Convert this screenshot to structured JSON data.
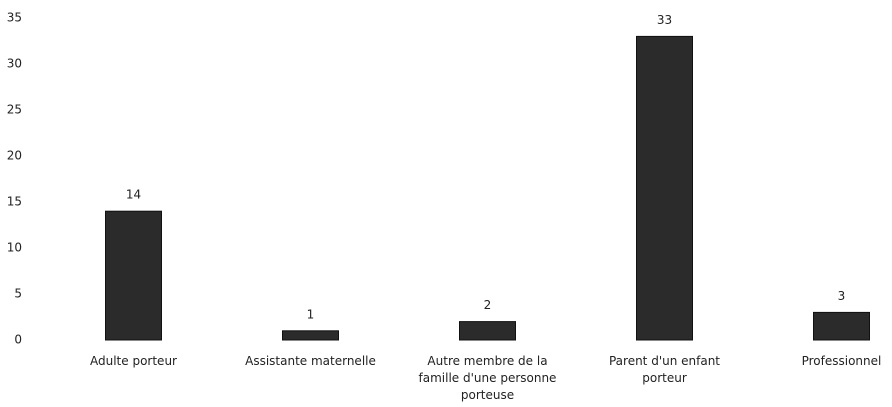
{
  "chart_data": {
    "type": "bar",
    "categories": [
      "Adulte porteur",
      "Assistante maternelle",
      "Autre membre de la famille d'une personne porteuse",
      "Parent d'un enfant porteur",
      "Professionnel"
    ],
    "values": [
      14,
      1,
      2,
      33,
      3
    ],
    "color": "#2b2b2b",
    "ylim": [
      0,
      35
    ],
    "yticks": [
      0,
      5,
      10,
      15,
      20,
      25,
      30,
      35
    ],
    "grid": false
  }
}
